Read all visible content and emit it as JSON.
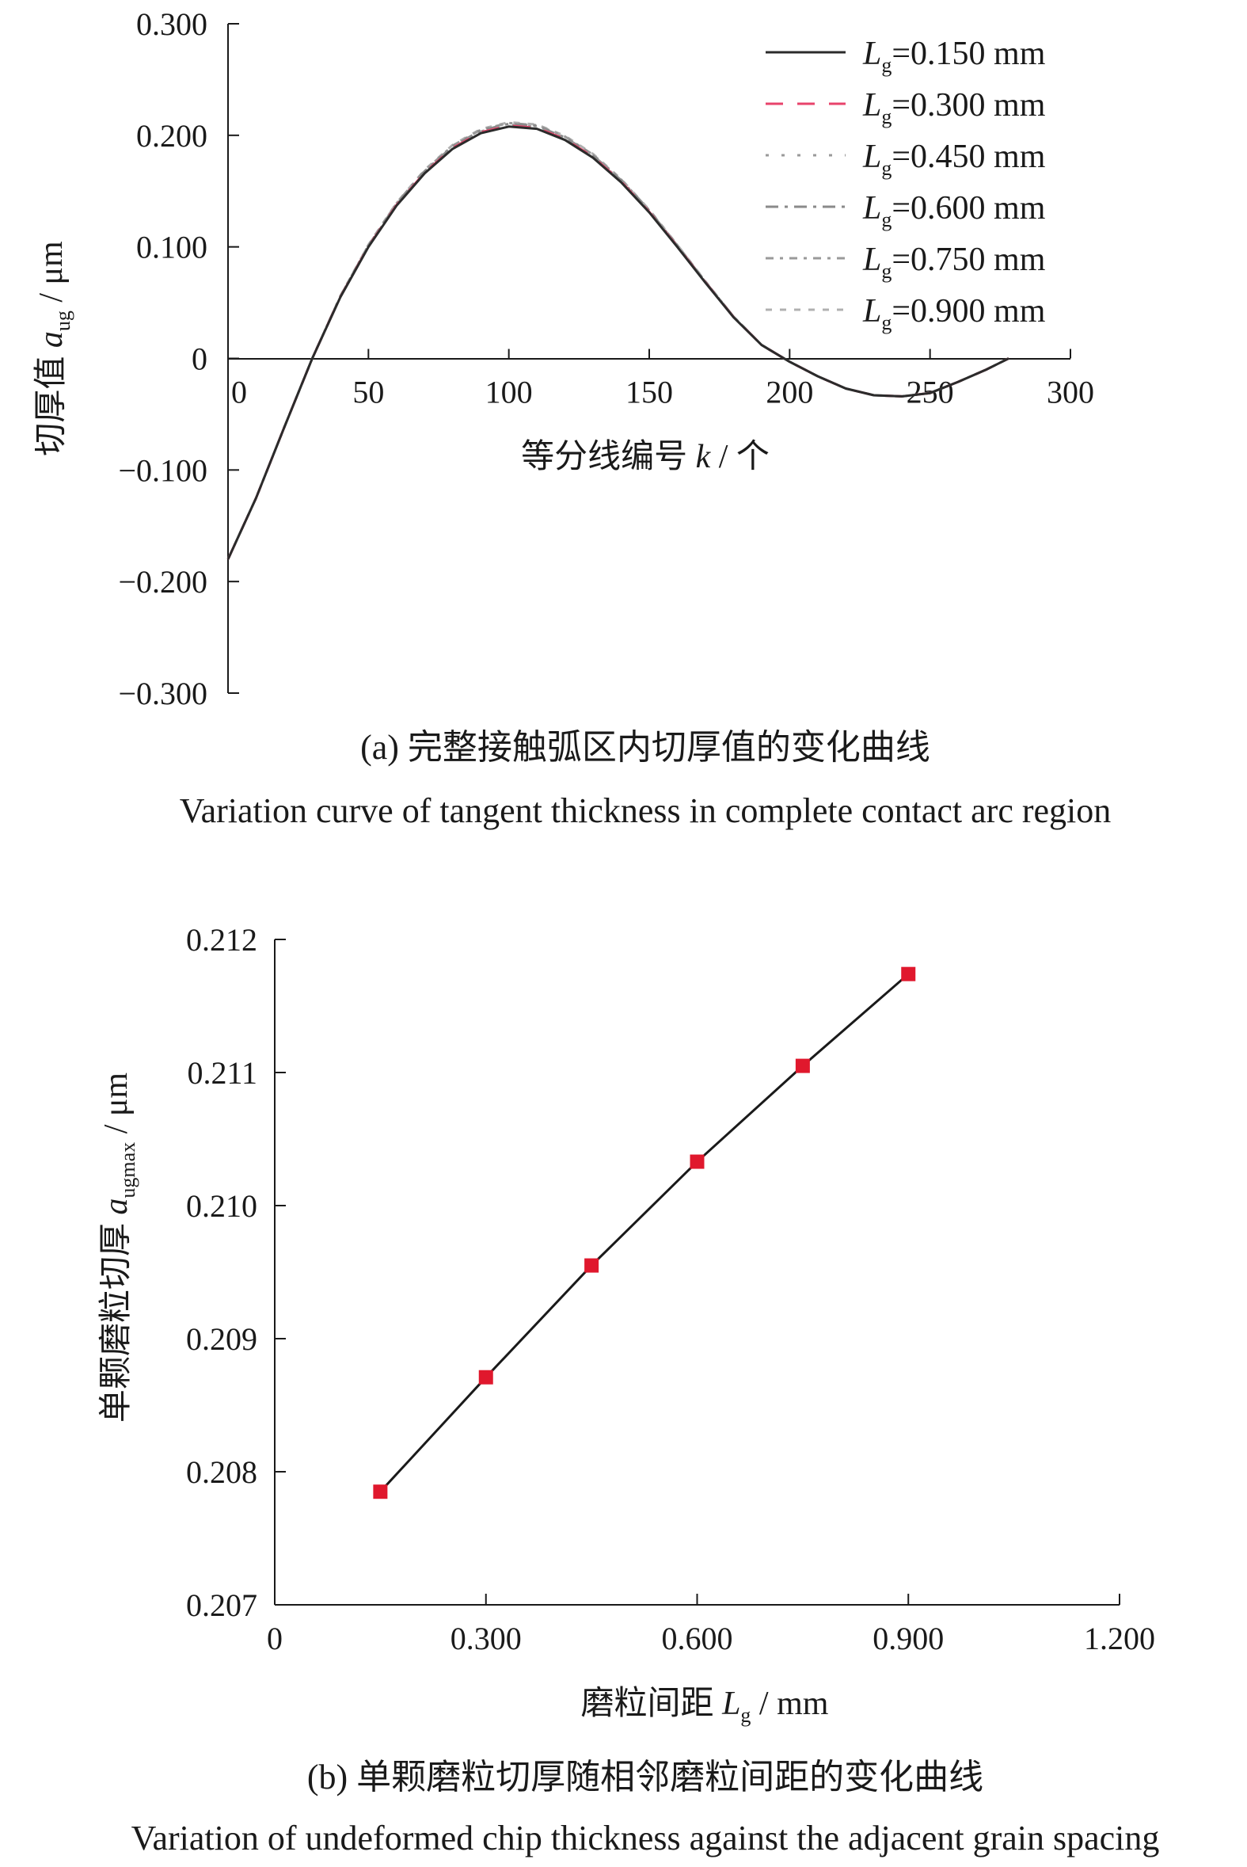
{
  "chart_data": [
    {
      "type": "line",
      "ylabel_main": "切厚值",
      "ylabel_var": "a",
      "ylabel_sub": "ug",
      "ylabel_unit": " / μm",
      "xlabel_main": "等分线编号 ",
      "xlabel_var": "k",
      "xlabel_unit": " / 个",
      "xlim": [
        0,
        300
      ],
      "ylim": [
        -0.3,
        0.3
      ],
      "xticks": [
        "0",
        "50",
        "100",
        "150",
        "200",
        "250",
        "300"
      ],
      "yticks": [
        "0.300",
        "0.200",
        "0.100",
        "0",
        "−0.100",
        "−0.200",
        "−0.300"
      ],
      "legend_position": "top-right",
      "series": [
        {
          "name_var": "L",
          "name_sub": "g",
          "name_rest": "=0.150 mm",
          "color": "#2b2b2b",
          "dash": "none",
          "amax": 0.20785
        },
        {
          "name_var": "L",
          "name_sub": "g",
          "name_rest": "=0.300 mm",
          "color": "#e8436b",
          "dash": "22 18",
          "amax": 0.20871
        },
        {
          "name_var": "L",
          "name_sub": "g",
          "name_rest": "=0.450 mm",
          "color": "#9a9a9a",
          "dash": "4 16",
          "amax": 0.20955
        },
        {
          "name_var": "L",
          "name_sub": "g",
          "name_rest": "=0.600 mm",
          "color": "#8a8a8a",
          "dash": "16 8 4 8",
          "amax": 0.21033
        },
        {
          "name_var": "L",
          "name_sub": "g",
          "name_rest": "=0.750 mm",
          "color": "#9a9a9a",
          "dash": "10 8 4 8",
          "amax": 0.21105
        },
        {
          "name_var": "L",
          "name_sub": "g",
          "name_rest": "=0.900 mm",
          "color": "#b0b0b0",
          "dash": "8 10",
          "amax": 0.21174
        }
      ],
      "curve_points": [
        [
          0,
          -0.18
        ],
        [
          10,
          -0.125
        ],
        [
          20,
          -0.062
        ],
        [
          30,
          0.0
        ],
        [
          40,
          0.055
        ],
        [
          50,
          0.1
        ],
        [
          60,
          0.137
        ],
        [
          70,
          0.166
        ],
        [
          80,
          0.188
        ],
        [
          90,
          0.202
        ],
        [
          100,
          0.208
        ],
        [
          110,
          0.206
        ],
        [
          120,
          0.196
        ],
        [
          130,
          0.18
        ],
        [
          140,
          0.158
        ],
        [
          150,
          0.131
        ],
        [
          160,
          0.1
        ],
        [
          170,
          0.068
        ],
        [
          180,
          0.037
        ],
        [
          190,
          0.012
        ],
        [
          200,
          -0.003
        ],
        [
          210,
          -0.016
        ],
        [
          220,
          -0.027
        ],
        [
          230,
          -0.033
        ],
        [
          240,
          -0.034
        ],
        [
          250,
          -0.031
        ],
        [
          260,
          -0.021
        ],
        [
          270,
          -0.01
        ],
        [
          278,
          0.0
        ]
      ],
      "caption_cn": "(a) 完整接触弧区内切厚值的变化曲线",
      "caption_en": "Variation curve of tangent thickness in complete contact arc region"
    },
    {
      "type": "line",
      "ylabel_main": "单颗磨粒切厚 ",
      "ylabel_var": "a",
      "ylabel_sub": "ugmax",
      "ylabel_unit": " / μm",
      "xlabel_main": "磨粒间距 ",
      "xlabel_var": "L",
      "xlabel_sub": "g",
      "xlabel_unit": " / mm",
      "xlim": [
        0,
        1.2
      ],
      "ylim": [
        0.207,
        0.212
      ],
      "xticks": [
        "0",
        "0.300",
        "0.600",
        "0.900",
        "1.200"
      ],
      "yticks": [
        "0.212",
        "0.211",
        "0.210",
        "0.209",
        "0.208",
        "0.207"
      ],
      "x": [
        0.15,
        0.3,
        0.45,
        0.6,
        0.75,
        0.9
      ],
      "values": [
        0.20785,
        0.20871,
        0.20955,
        0.21033,
        0.21105,
        0.21174
      ],
      "line_color": "#1a1a1a",
      "marker_color": "#e0182d",
      "caption_cn": "(b) 单颗磨粒切厚随相邻磨粒间距的变化曲线",
      "caption_en": "Variation of undeformed chip thickness against the adjacent grain spacing"
    }
  ]
}
